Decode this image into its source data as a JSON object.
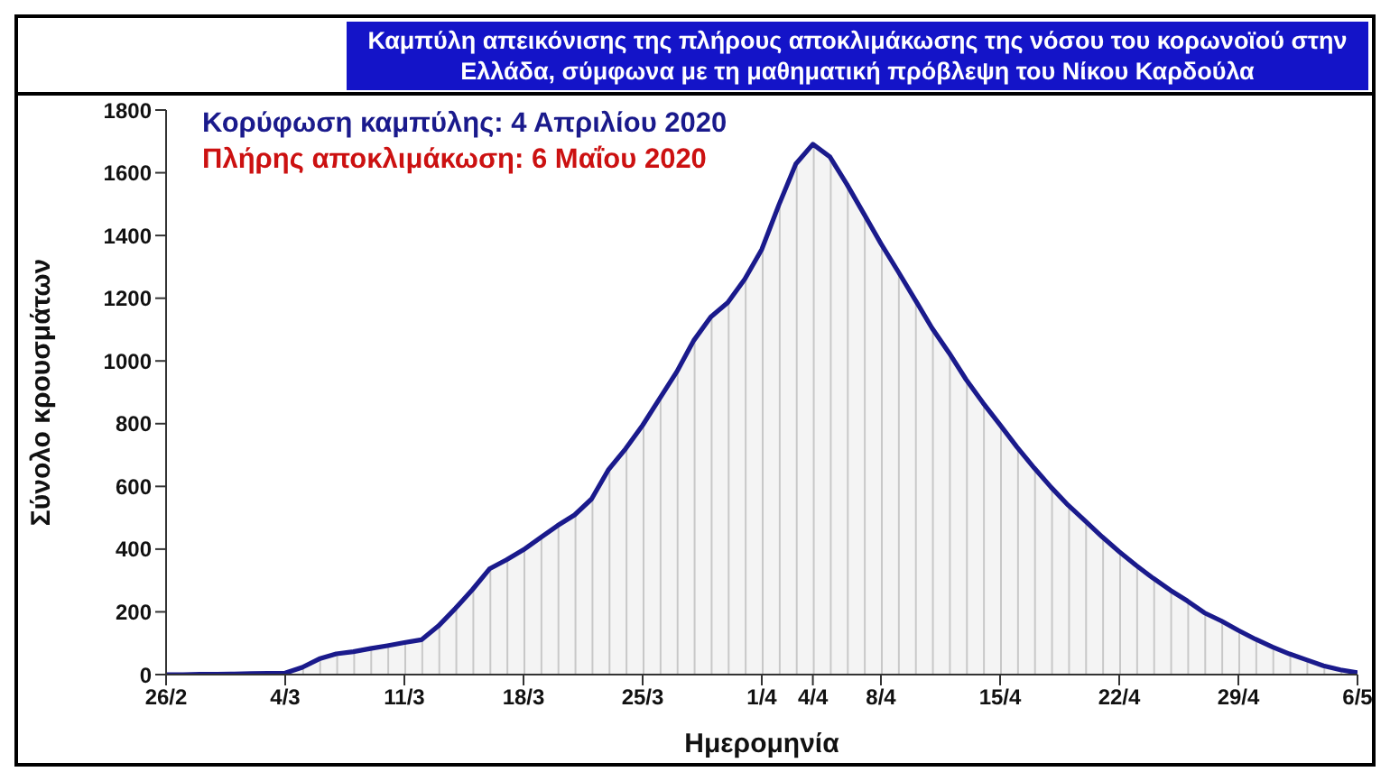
{
  "chart_data": {
    "type": "area",
    "title": "Καμπύλη απεικόνισης της πλήρους αποκλιμάκωσης της νόσου του κορωνοϊού στην Ελλάδα, σύμφωνα με τη μαθηματική πρόβλεψη του Νίκου Καρδούλα",
    "annotations": [
      "Κορύφωση καμπύλης: 4 Απριλίου 2020",
      "Πλήρης αποκλιμάκωση: 6 Μαΐου 2020"
    ],
    "xlabel": "Ημερομηνία",
    "ylabel": "Σύνολο κρουσμάτων",
    "x": [
      "2020-02-26",
      "2020-02-27",
      "2020-02-28",
      "2020-02-29",
      "2020-03-01",
      "2020-03-02",
      "2020-03-03",
      "2020-03-04",
      "2020-03-05",
      "2020-03-06",
      "2020-03-07",
      "2020-03-08",
      "2020-03-09",
      "2020-03-10",
      "2020-03-11",
      "2020-03-12",
      "2020-03-13",
      "2020-03-14",
      "2020-03-15",
      "2020-03-16",
      "2020-03-17",
      "2020-03-18",
      "2020-03-19",
      "2020-03-20",
      "2020-03-21",
      "2020-03-22",
      "2020-03-23",
      "2020-03-24",
      "2020-03-25",
      "2020-03-26",
      "2020-03-27",
      "2020-03-28",
      "2020-03-29",
      "2020-03-30",
      "2020-03-31",
      "2020-04-01",
      "2020-04-02",
      "2020-04-03",
      "2020-04-04",
      "2020-04-05",
      "2020-04-06",
      "2020-04-07",
      "2020-04-08",
      "2020-04-09",
      "2020-04-10",
      "2020-04-11",
      "2020-04-12",
      "2020-04-13",
      "2020-04-14",
      "2020-04-15",
      "2020-04-16",
      "2020-04-17",
      "2020-04-18",
      "2020-04-19",
      "2020-04-20",
      "2020-04-21",
      "2020-04-22",
      "2020-04-23",
      "2020-04-24",
      "2020-04-25",
      "2020-04-26",
      "2020-04-27",
      "2020-04-28",
      "2020-04-29",
      "2020-04-30",
      "2020-05-01",
      "2020-05-02",
      "2020-05-03",
      "2020-05-04",
      "2020-05-05",
      "2020-05-06"
    ],
    "series": [
      {
        "color": "#1a1a8c",
        "values": [
          0,
          0,
          1,
          1,
          2,
          3,
          4,
          5,
          23,
          50,
          66,
          73,
          83,
          92,
          102,
          111,
          155,
          211,
          271,
          337,
          366,
          398,
          437,
          475,
          509,
          560,
          654,
          720,
          795,
          880,
          965,
          1065,
          1140,
          1186,
          1261,
          1356,
          1497,
          1628,
          1691,
          1651,
          1563,
          1469,
          1374,
          1286,
          1196,
          1105,
          1026,
          941,
          866,
          796,
          725,
          659,
          597,
          540,
          490,
          439,
          392,
          348,
          307,
          269,
          235,
          197,
          171,
          141,
          113,
          88,
          66,
          47,
          28,
          15,
          6
        ]
      }
    ],
    "xlim": [
      "2020-02-26",
      "2020-05-06"
    ],
    "xticks": [
      {
        "value": "2020-02-26",
        "label": "26/2"
      },
      {
        "value": "2020-03-04",
        "label": "4/3"
      },
      {
        "value": "2020-03-11",
        "label": "11/3"
      },
      {
        "value": "2020-03-18",
        "label": "18/3"
      },
      {
        "value": "2020-03-25",
        "label": "25/3"
      },
      {
        "value": "2020-04-01",
        "label": "1/4"
      },
      {
        "value": "2020-04-04",
        "label": "4/4"
      },
      {
        "value": "2020-04-08",
        "label": "8/4"
      },
      {
        "value": "2020-04-15",
        "label": "15/4"
      },
      {
        "value": "2020-04-22",
        "label": "22/4"
      },
      {
        "value": "2020-04-29",
        "label": "29/4"
      },
      {
        "value": "2020-05-06",
        "label": "6/5"
      }
    ],
    "ylim": [
      0,
      1800
    ],
    "yticks": [
      0,
      200,
      400,
      600,
      800,
      1000,
      1200,
      1400,
      1600,
      1800
    ]
  }
}
